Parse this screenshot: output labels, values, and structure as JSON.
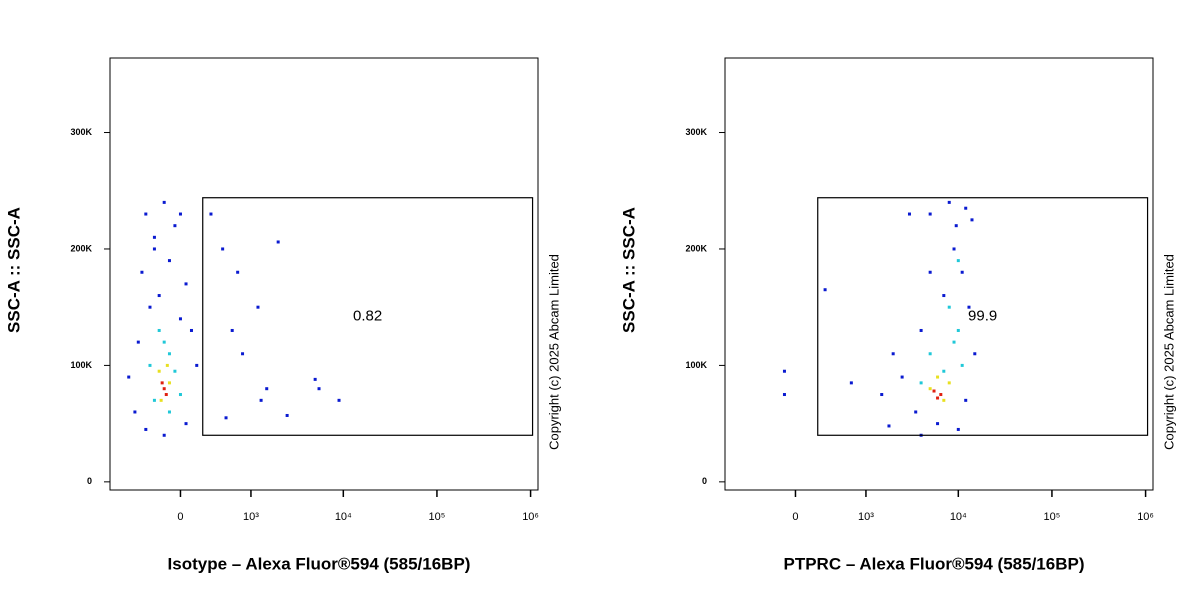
{
  "chart_data": [
    {
      "type": "scatter",
      "x_label": "Isotype – Alexa Fluor®594 (585/16BP)",
      "y_label": "SSC-A :: SSC-A",
      "annotation": "Copyright (c) 2025 Abcam Limited",
      "xscale": "arcsinh",
      "xlim": [
        -1000,
        1200000
      ],
      "xticks": [
        0,
        {
          "value": 1000,
          "label": "10³"
        },
        {
          "value": 10000,
          "label": "10⁴"
        },
        {
          "value": 100000,
          "label": "10⁵"
        },
        {
          "value": 1000000,
          "label": "10⁶"
        }
      ],
      "ylim": [
        -7000,
        364000
      ],
      "yticks": [
        0,
        {
          "value": 100000,
          "label": "100K"
        },
        {
          "value": 200000,
          "label": "200K"
        },
        {
          "value": 300000,
          "label": "300K"
        }
      ],
      "gate": {
        "x": [
          210,
          1050000
        ],
        "y": [
          40000,
          244000
        ],
        "percent": 0.82
      },
      "series": [
        {
          "color": "#0a1ad0",
          "x": [
            -350,
            -150,
            -50,
            -250,
            -400,
            -100,
            50,
            -300,
            -200,
            0,
            -450,
            100,
            -500,
            50,
            -350,
            -150,
            -600,
            150,
            -250,
            0,
            300,
            450,
            700,
            2000,
            600,
            1200,
            800,
            1500,
            5000,
            9000,
            2500,
            1300,
            500,
            5500
          ],
          "values": [
            230000,
            240000,
            220000,
            200000,
            180000,
            190000,
            170000,
            150000,
            160000,
            140000,
            120000,
            130000,
            60000,
            50000,
            45000,
            40000,
            90000,
            100000,
            210000,
            230000,
            230000,
            200000,
            180000,
            206000,
            130000,
            150000,
            110000,
            80000,
            88000,
            70000,
            57000,
            70000,
            55000,
            80000
          ]
        },
        {
          "color": "#20c8d8",
          "x": [
            -200,
            -100,
            -300,
            -50,
            -150,
            -250,
            -100,
            0
          ],
          "values": [
            130000,
            110000,
            100000,
            95000,
            120000,
            70000,
            60000,
            75000
          ]
        },
        {
          "color": "#e8e020",
          "x": [
            -200,
            -100,
            -180,
            -120
          ],
          "values": [
            95000,
            85000,
            70000,
            100000
          ]
        },
        {
          "color": "#e02010",
          "x": [
            -150,
            -130,
            -170
          ],
          "values": [
            80000,
            75000,
            85000
          ]
        }
      ]
    },
    {
      "type": "scatter",
      "x_label": "PTPRC – Alexa Fluor®594 (585/16BP)",
      "y_label": "SSC-A :: SSC-A",
      "annotation": "Copyright (c) 2025 Abcam Limited",
      "xscale": "arcsinh",
      "xlim": [
        -1000,
        1200000
      ],
      "xticks": [
        0,
        {
          "value": 1000,
          "label": "10³"
        },
        {
          "value": 10000,
          "label": "10⁴"
        },
        {
          "value": 100000,
          "label": "10⁵"
        },
        {
          "value": 1000000,
          "label": "10⁶"
        }
      ],
      "ylim": [
        -7000,
        364000
      ],
      "yticks": [
        0,
        {
          "value": 100000,
          "label": "100K"
        },
        {
          "value": 200000,
          "label": "200K"
        },
        {
          "value": 300000,
          "label": "300K"
        }
      ],
      "gate": {
        "x": [
          210,
          1050000
        ],
        "y": [
          40000,
          244000
        ],
        "percent": 99.9
      },
      "series": [
        {
          "color": "#0a1ad0",
          "x": [
            5000,
            3000,
            12000,
            8000,
            14000,
            9000,
            11000,
            7000,
            13000,
            4000,
            2000,
            2500,
            1500,
            3500,
            6000,
            10000,
            12000,
            15000,
            5000,
            9500,
            -100,
            -100,
            290,
            675,
            1800,
            4000
          ],
          "values": [
            230000,
            230000,
            235000,
            240000,
            225000,
            200000,
            180000,
            160000,
            150000,
            130000,
            110000,
            90000,
            75000,
            60000,
            50000,
            45000,
            70000,
            110000,
            180000,
            220000,
            95000,
            75000,
            165000,
            85000,
            48000,
            40000
          ]
        },
        {
          "color": "#20c8d8",
          "x": [
            8000,
            10000,
            5000,
            7000,
            9000,
            4000,
            11000,
            10000
          ],
          "values": [
            150000,
            130000,
            110000,
            95000,
            120000,
            85000,
            100000,
            190000
          ]
        },
        {
          "color": "#e8e020",
          "x": [
            5000,
            7000,
            6000,
            8000
          ],
          "values": [
            80000,
            70000,
            90000,
            85000
          ]
        },
        {
          "color": "#e02010",
          "x": [
            6500,
            6000,
            5500
          ],
          "values": [
            75000,
            72000,
            78000
          ]
        }
      ]
    }
  ]
}
